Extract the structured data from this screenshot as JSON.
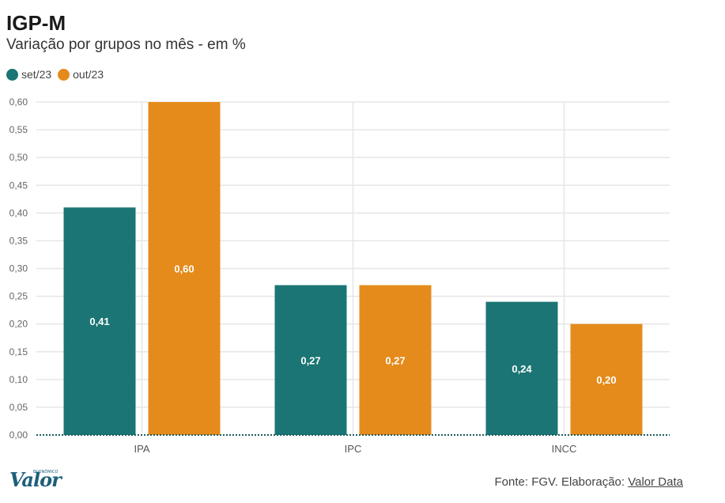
{
  "header": {
    "title": "IGP-M",
    "subtitle": "Variação por grupos no mês - em %"
  },
  "colors": {
    "series_1": "#1b7574",
    "series_2": "#e58b1b",
    "grid": "#e6e6e6",
    "baseline": "#1b5e5d"
  },
  "chart_data": {
    "type": "bar",
    "categories": [
      "IPA",
      "IPC",
      "INCC"
    ],
    "series": [
      {
        "name": "set/23",
        "values": [
          0.41,
          0.27,
          0.24
        ],
        "labels": [
          "0,41",
          "0,27",
          "0,24"
        ]
      },
      {
        "name": "out/23",
        "values": [
          0.6,
          0.27,
          0.2
        ],
        "labels": [
          "0,60",
          "0,27",
          "0,20"
        ]
      }
    ],
    "ylim": [
      0,
      0.6
    ],
    "yticks": [
      "0,00",
      "0,05",
      "0,10",
      "0,15",
      "0,20",
      "0,25",
      "0,30",
      "0,35",
      "0,40",
      "0,45",
      "0,50",
      "0,55",
      "0,60"
    ],
    "grid": true,
    "legend_position": "top-left"
  },
  "footer": {
    "source_prefix": "Fonte: FGV. Elaboração: ",
    "source_link": "Valor Data",
    "logo": "Valor",
    "logo_tag": "ECONÔMICO"
  }
}
